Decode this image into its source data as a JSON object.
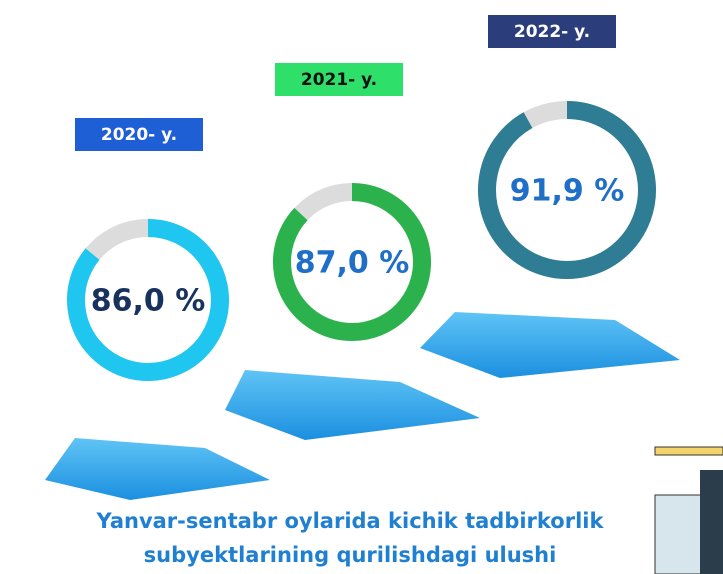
{
  "chart_data": {
    "type": "donut",
    "title": "Yanvar-sentabr oylarida kichik tadbirkorlik subyektlarining qurilishdagi ulushi",
    "categories": [
      "2020- y.",
      "2021- y.",
      "2022- y."
    ],
    "values": [
      86,
      87,
      91.9
    ],
    "value_labels": [
      "86,0 %",
      "87,0 %",
      "91,9 %"
    ],
    "colors": [
      "#1ec6f0",
      "#2bb24c",
      "#2e7d94"
    ],
    "badge_colors": [
      "#1f5fd6",
      "#2ee06a",
      "#2b3d7a"
    ]
  }
}
